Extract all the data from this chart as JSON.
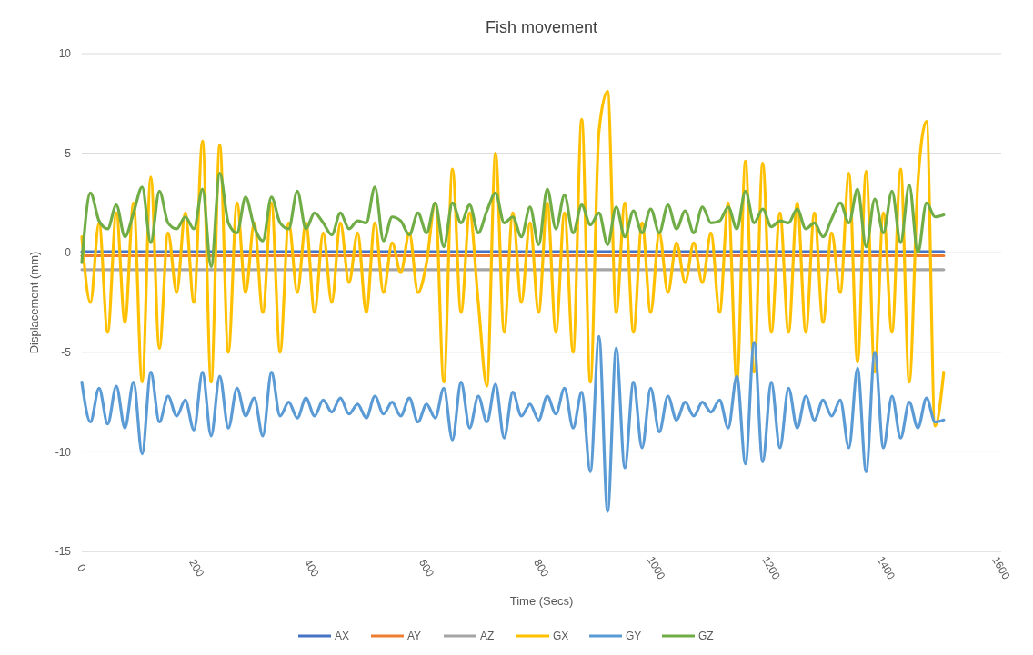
{
  "chart_data": {
    "type": "line",
    "title": "Fish movement",
    "xlabel": "Time (Secs)",
    "ylabel": "Displacement (mm)",
    "xlim": [
      0,
      1600
    ],
    "xticks": [
      0,
      200,
      400,
      600,
      800,
      1000,
      1200,
      1400,
      1600
    ],
    "ylim": [
      -15,
      10
    ],
    "yticks": [
      -15,
      -10,
      -5,
      0,
      5,
      10
    ],
    "grid": "y",
    "legend": "bottom",
    "marker": "none",
    "line_style": "solid",
    "x": [
      0,
      15,
      30,
      45,
      60,
      75,
      90,
      105,
      120,
      135,
      150,
      165,
      180,
      195,
      210,
      225,
      240,
      255,
      270,
      285,
      300,
      315,
      330,
      345,
      360,
      375,
      390,
      405,
      420,
      435,
      450,
      465,
      480,
      495,
      510,
      525,
      540,
      555,
      570,
      585,
      600,
      615,
      630,
      645,
      660,
      675,
      690,
      705,
      720,
      735,
      750,
      765,
      780,
      795,
      810,
      825,
      840,
      855,
      870,
      885,
      900,
      915,
      930,
      945,
      960,
      975,
      990,
      1005,
      1020,
      1035,
      1050,
      1065,
      1080,
      1095,
      1110,
      1125,
      1140,
      1155,
      1170,
      1185,
      1200,
      1215,
      1230,
      1245,
      1260,
      1275,
      1290,
      1305,
      1320,
      1335,
      1350,
      1365,
      1380,
      1395,
      1410,
      1425,
      1440,
      1455,
      1470,
      1485,
      1500
    ],
    "series": [
      {
        "name": "AX",
        "color": "#4472c4",
        "values": [
          0.05,
          0.05,
          0.05,
          0.05,
          0.05,
          0.05,
          0.05,
          0.05,
          0.05,
          0.05,
          0.05,
          0.05,
          0.05,
          0.05,
          0.05,
          0.05,
          0.05,
          0.05,
          0.05,
          0.05,
          0.05,
          0.05,
          0.05,
          0.05,
          0.05,
          0.05,
          0.05,
          0.05,
          0.05,
          0.05,
          0.05,
          0.05,
          0.05,
          0.05,
          0.05,
          0.05,
          0.05,
          0.05,
          0.05,
          0.05,
          0.05,
          0.05,
          0.05,
          0.05,
          0.05,
          0.05,
          0.05,
          0.05,
          0.05,
          0.05,
          0.05,
          0.05,
          0.05,
          0.05,
          0.05,
          0.05,
          0.05,
          0.05,
          0.05,
          0.05,
          0.05,
          0.05,
          0.05,
          0.05,
          0.05,
          0.05,
          0.05,
          0.05,
          0.05,
          0.05,
          0.05,
          0.05,
          0.05,
          0.05,
          0.05,
          0.05,
          0.05,
          0.05,
          0.05,
          0.05,
          0.05,
          0.05,
          0.05,
          0.05,
          0.05,
          0.05,
          0.05,
          0.05,
          0.05,
          0.05,
          0.05,
          0.05,
          0.05,
          0.05,
          0.05,
          0.05,
          0.05,
          0.05,
          0.05,
          0.05,
          0.05
        ]
      },
      {
        "name": "AY",
        "color": "#ed7d31",
        "values": [
          -0.15,
          -0.15,
          -0.15,
          -0.15,
          -0.15,
          -0.15,
          -0.15,
          -0.15,
          -0.15,
          -0.15,
          -0.15,
          -0.15,
          -0.15,
          -0.15,
          -0.15,
          -0.15,
          -0.15,
          -0.15,
          -0.15,
          -0.15,
          -0.15,
          -0.15,
          -0.15,
          -0.15,
          -0.15,
          -0.15,
          -0.15,
          -0.15,
          -0.15,
          -0.15,
          -0.15,
          -0.15,
          -0.15,
          -0.15,
          -0.15,
          -0.15,
          -0.15,
          -0.15,
          -0.15,
          -0.15,
          -0.15,
          -0.15,
          -0.15,
          -0.15,
          -0.15,
          -0.15,
          -0.15,
          -0.15,
          -0.15,
          -0.15,
          -0.15,
          -0.15,
          -0.15,
          -0.15,
          -0.15,
          -0.15,
          -0.15,
          -0.15,
          -0.15,
          -0.15,
          -0.15,
          -0.15,
          -0.15,
          -0.15,
          -0.15,
          -0.15,
          -0.15,
          -0.15,
          -0.15,
          -0.15,
          -0.15,
          -0.15,
          -0.15,
          -0.15,
          -0.15,
          -0.15,
          -0.15,
          -0.15,
          -0.15,
          -0.15,
          -0.15,
          -0.15,
          -0.15,
          -0.15,
          -0.15,
          -0.15,
          -0.15,
          -0.15,
          -0.15,
          -0.15,
          -0.15,
          -0.15,
          -0.15,
          -0.15,
          -0.15,
          -0.15,
          -0.15,
          -0.15,
          -0.15,
          -0.15,
          -0.15
        ]
      },
      {
        "name": "AZ",
        "color": "#a5a5a5",
        "values": [
          -0.85,
          -0.85,
          -0.85,
          -0.85,
          -0.85,
          -0.85,
          -0.85,
          -0.85,
          -0.85,
          -0.85,
          -0.85,
          -0.85,
          -0.85,
          -0.85,
          -0.85,
          -0.85,
          -0.85,
          -0.85,
          -0.85,
          -0.85,
          -0.85,
          -0.85,
          -0.85,
          -0.85,
          -0.85,
          -0.85,
          -0.85,
          -0.85,
          -0.85,
          -0.85,
          -0.85,
          -0.85,
          -0.85,
          -0.85,
          -0.85,
          -0.85,
          -0.85,
          -0.85,
          -0.85,
          -0.85,
          -0.85,
          -0.85,
          -0.85,
          -0.85,
          -0.85,
          -0.85,
          -0.85,
          -0.85,
          -0.85,
          -0.85,
          -0.85,
          -0.85,
          -0.85,
          -0.85,
          -0.85,
          -0.85,
          -0.85,
          -0.85,
          -0.85,
          -0.85,
          -0.85,
          -0.85,
          -0.85,
          -0.85,
          -0.85,
          -0.85,
          -0.85,
          -0.85,
          -0.85,
          -0.85,
          -0.85,
          -0.85,
          -0.85,
          -0.85,
          -0.85,
          -0.85,
          -0.85,
          -0.85,
          -0.85,
          -0.85,
          -0.85,
          -0.85,
          -0.85,
          -0.85,
          -0.85,
          -0.85,
          -0.85,
          -0.85,
          -0.85,
          -0.85,
          -0.85,
          -0.85,
          -0.85,
          -0.85,
          -0.85,
          -0.85,
          -0.85,
          -0.85,
          -0.85,
          -0.85,
          -0.85
        ]
      },
      {
        "name": "GX",
        "color": "#ffc000",
        "values": [
          0.8,
          -2.5,
          1.5,
          -4,
          2,
          -3.5,
          2.5,
          -6.5,
          3.8,
          -4.8,
          1,
          -2,
          2,
          -2.5,
          5.6,
          -6.5,
          5.4,
          -5,
          2.5,
          -2,
          1.5,
          -3,
          2.5,
          -5,
          1.5,
          -2,
          1.5,
          -3,
          1,
          -2.5,
          1.5,
          -1.5,
          1,
          -3,
          1.5,
          -2,
          0.5,
          -1,
          1,
          -2,
          -0.5,
          2.5,
          -6.5,
          4.2,
          -3,
          2,
          -2.5,
          -6.7,
          5,
          -4,
          2,
          -2.5,
          1.5,
          -3,
          2.5,
          -4,
          2,
          -5,
          6.7,
          -6.5,
          6.1,
          8.1,
          -3,
          2.5,
          -4,
          1.5,
          -3,
          1,
          -2,
          0.5,
          -1.5,
          0.5,
          -1.5,
          1,
          -3,
          2.5,
          -6.5,
          4.6,
          -6,
          4.5,
          -4,
          2,
          -4,
          2.5,
          -4,
          2,
          -3.5,
          1,
          -2,
          4,
          -5.5,
          4.1,
          -6,
          2,
          -4,
          4.2,
          -6.5,
          3.5,
          6.6,
          -8.7,
          -6
        ]
      },
      {
        "name": "GY",
        "color": "#5b9bd5",
        "values": [
          -6.5,
          -8.5,
          -6.8,
          -8.6,
          -6.7,
          -8.8,
          -6.5,
          -10.1,
          -6,
          -8.5,
          -7.2,
          -8.2,
          -7.4,
          -8.9,
          -6,
          -9.2,
          -6.2,
          -8.8,
          -6.8,
          -8.2,
          -7.3,
          -9.2,
          -6,
          -8.2,
          -7.5,
          -8.3,
          -7.3,
          -8.2,
          -7.4,
          -8,
          -7.3,
          -8.1,
          -7.6,
          -8.3,
          -7.2,
          -8.1,
          -7.5,
          -8.2,
          -7.3,
          -8.5,
          -7.6,
          -8.3,
          -6.8,
          -9.4,
          -6.5,
          -8.8,
          -7.2,
          -8.5,
          -6.6,
          -9.3,
          -7,
          -8.2,
          -7.6,
          -8.4,
          -7.2,
          -8.1,
          -6.8,
          -8.8,
          -7,
          -11,
          -4.2,
          -13,
          -4.8,
          -10.8,
          -6.5,
          -9.8,
          -6.8,
          -9,
          -7.2,
          -8.4,
          -7.5,
          -8.2,
          -7.5,
          -8,
          -7.4,
          -8.8,
          -6.2,
          -10.6,
          -4.5,
          -10.5,
          -6.5,
          -9.8,
          -6.8,
          -8.8,
          -7.2,
          -8.4,
          -7.4,
          -8.2,
          -7.4,
          -9.8,
          -5.8,
          -11,
          -5,
          -9.8,
          -7.2,
          -9.3,
          -7.5,
          -8.8,
          -7.3,
          -8.5,
          -8.4
        ]
      },
      {
        "name": "GZ",
        "color": "#70ad47",
        "values": [
          -0.5,
          3,
          1.6,
          1.2,
          2.4,
          0.8,
          2,
          3.3,
          0.5,
          3.1,
          1.5,
          1.2,
          1.8,
          1.2,
          3.2,
          -0.7,
          4,
          1.5,
          1,
          2.8,
          1.3,
          0.6,
          2.8,
          1.5,
          1.2,
          3.1,
          1.2,
          2,
          1.5,
          0.9,
          2,
          1.2,
          1.6,
          1.5,
          3.3,
          0.6,
          1.8,
          1.6,
          0.9,
          2,
          1,
          2.5,
          0.3,
          2.5,
          1.5,
          2.4,
          1,
          2.1,
          3,
          1.5,
          1.8,
          0.8,
          2.3,
          0.4,
          3.2,
          1.2,
          2.9,
          1,
          2.4,
          1.4,
          2,
          0.4,
          2.3,
          0.8,
          2.1,
          1,
          2.2,
          1,
          2.4,
          1.2,
          2.1,
          1,
          2.3,
          1.5,
          1.6,
          2.3,
          1.2,
          3.1,
          1.5,
          2.2,
          1.3,
          1.6,
          1.5,
          2.2,
          1.2,
          1.5,
          0.8,
          1.7,
          2.5,
          1.5,
          3.2,
          0.3,
          2.7,
          1,
          3.1,
          0.5,
          3.4,
          0,
          2.5,
          1.8,
          1.9
        ]
      }
    ]
  }
}
